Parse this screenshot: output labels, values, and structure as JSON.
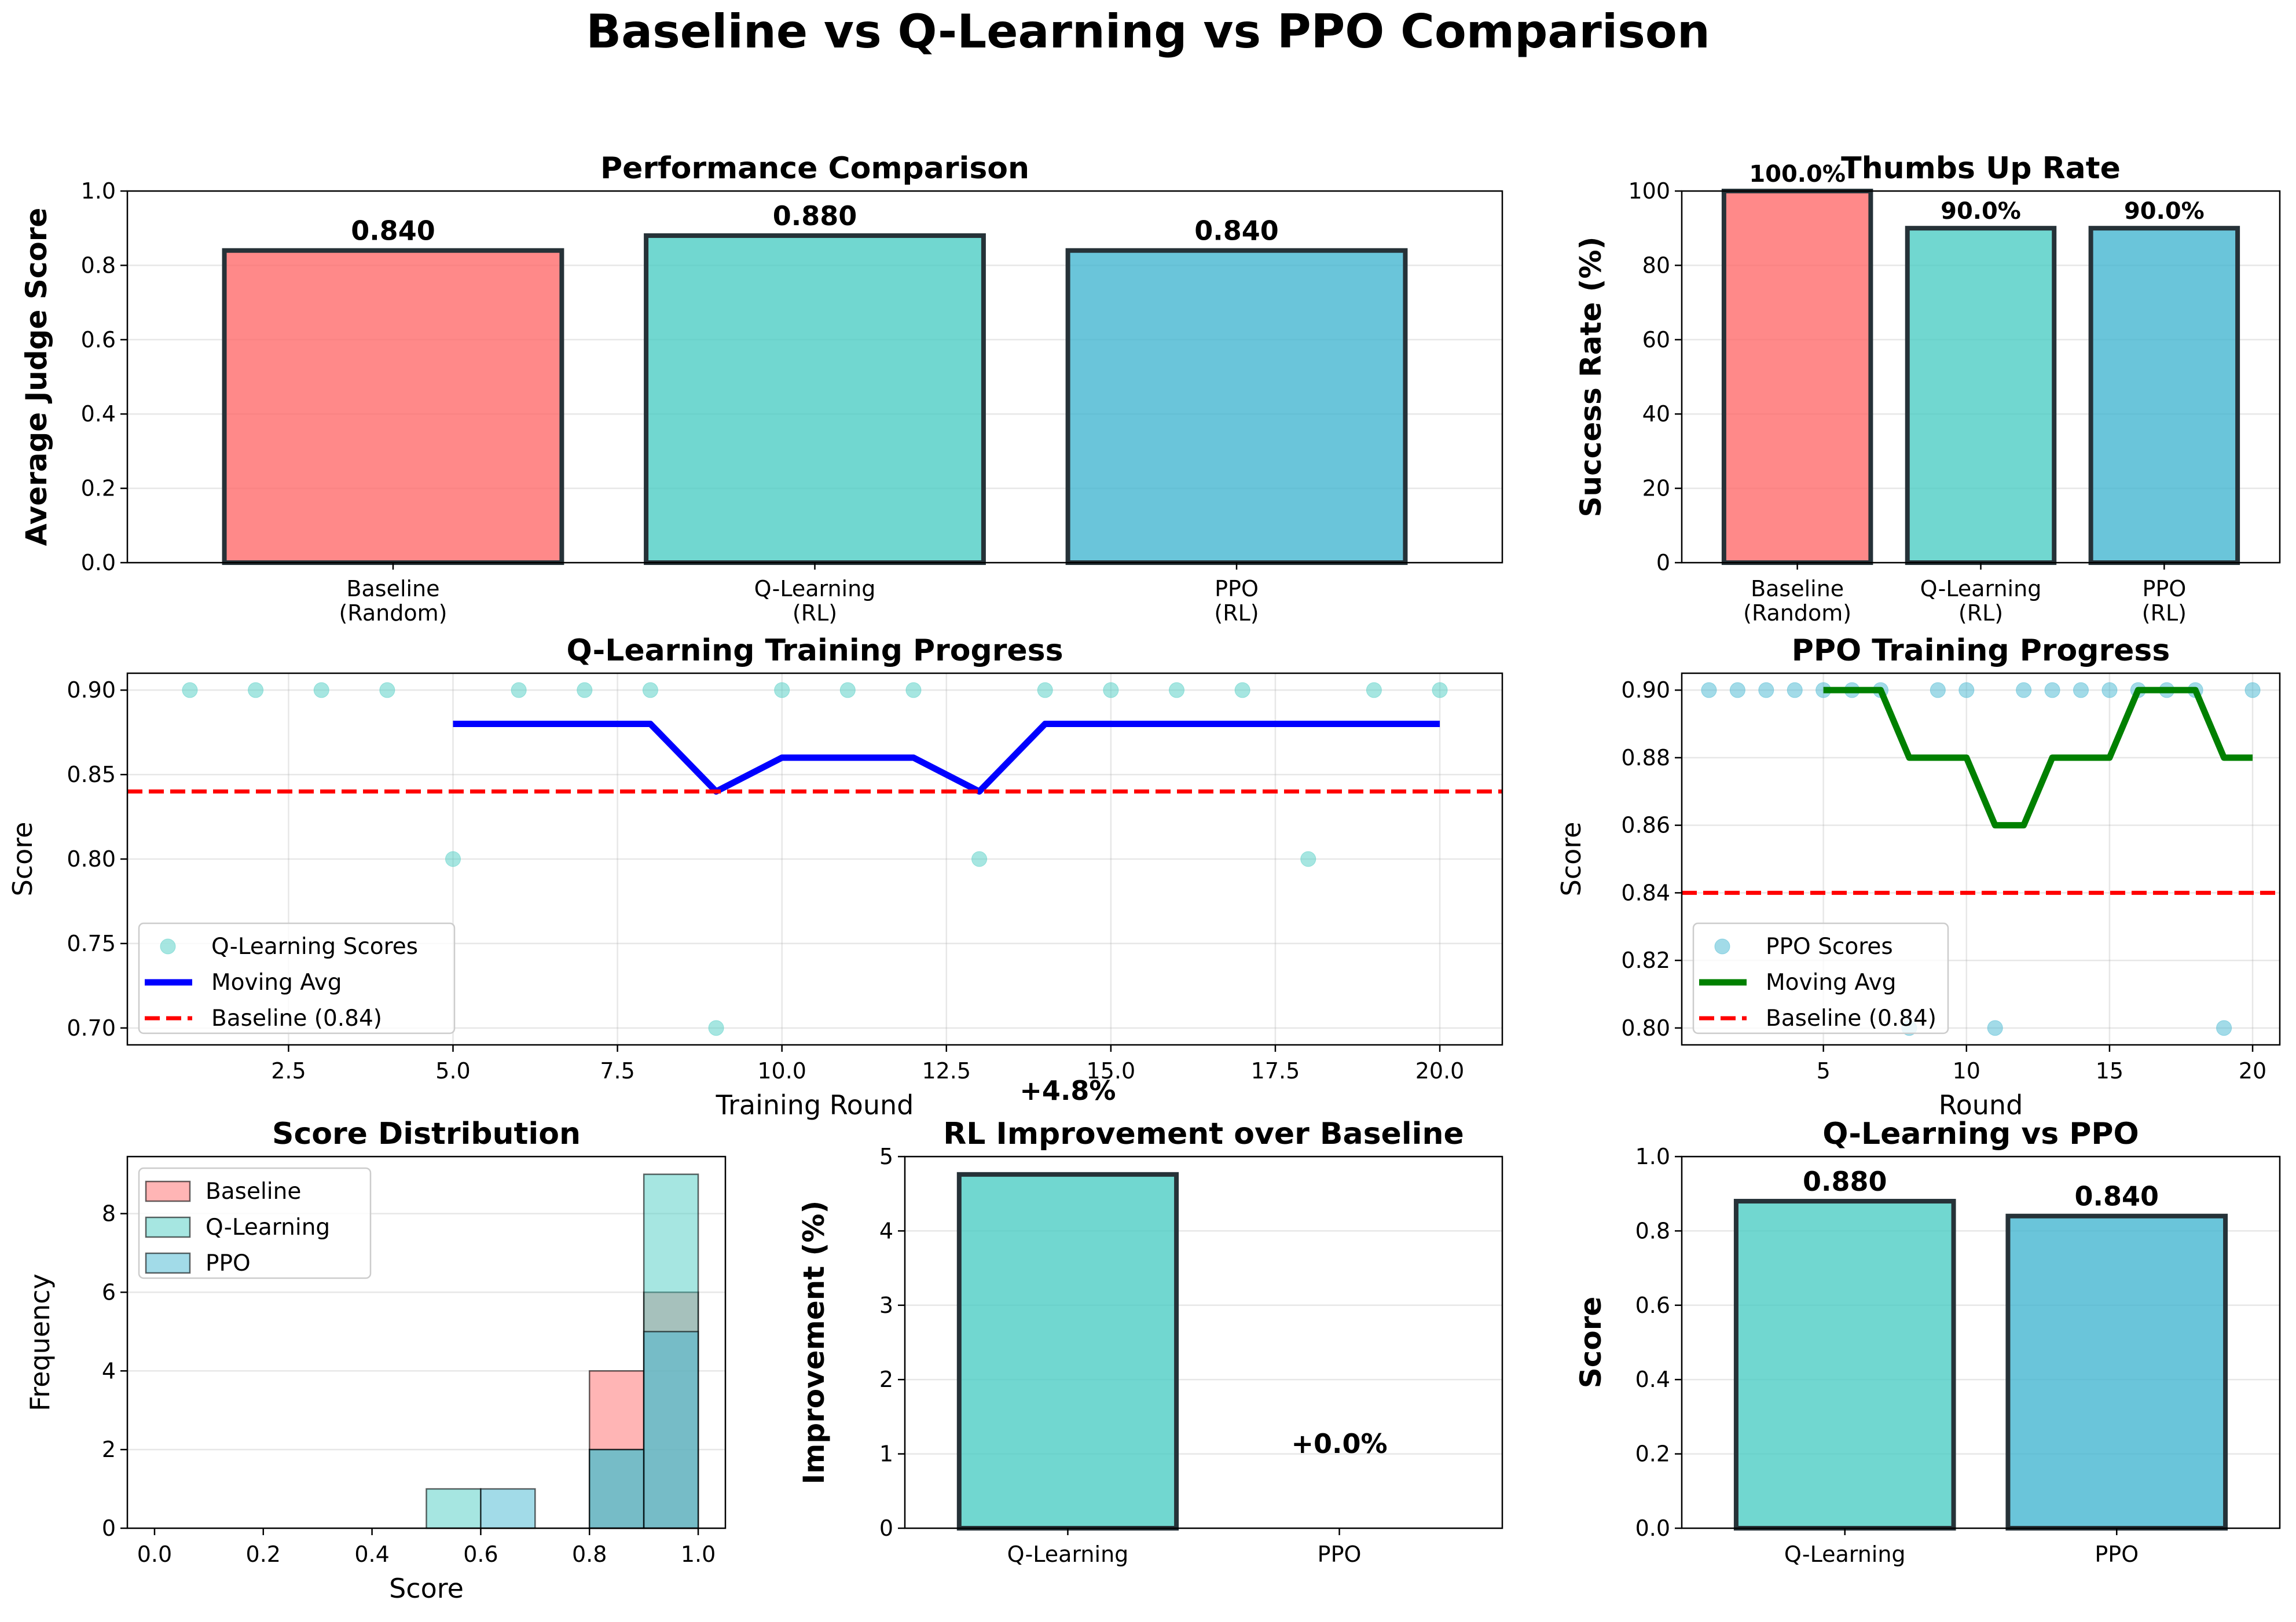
{
  "figure": {
    "title": "Baseline vs Q-Learning vs PPO Comparison"
  },
  "colors": {
    "baseline": "#FF6B6B",
    "qlearning": "#4ECDC4",
    "ppo": "#45B7D1",
    "edge": "#263238",
    "qavg": "#0000FF",
    "ppoavg": "#008000",
    "baseline_line": "#FF0000"
  },
  "chart_data": [
    {
      "id": "performance",
      "type": "bar",
      "title": "Performance Comparison",
      "ylabel": "Average Judge Score",
      "categories": [
        [
          "Baseline",
          "(Random)"
        ],
        [
          "Q-Learning",
          "(RL)"
        ],
        [
          "PPO",
          "(RL)"
        ]
      ],
      "values": [
        0.84,
        0.88,
        0.84
      ],
      "value_labels": [
        "0.840",
        "0.880",
        "0.840"
      ],
      "ylim": [
        0,
        1.0
      ],
      "yticks": [
        0.0,
        0.2,
        0.4,
        0.6,
        0.8,
        1.0
      ],
      "ytick_labels": [
        "0.0",
        "0.2",
        "0.4",
        "0.6",
        "0.8",
        "1.0"
      ]
    },
    {
      "id": "thumbs",
      "type": "bar",
      "title": "Thumbs Up Rate",
      "ylabel": "Success Rate (%)",
      "categories": [
        [
          "Baseline",
          "(Random)"
        ],
        [
          "Q-Learning",
          "(RL)"
        ],
        [
          "PPO",
          "(RL)"
        ]
      ],
      "values": [
        100,
        90,
        90
      ],
      "value_labels": [
        "100.0%",
        "90.0%",
        "90.0%"
      ],
      "ylim": [
        0,
        100
      ],
      "yticks": [
        0,
        20,
        40,
        60,
        80,
        100
      ],
      "ytick_labels": [
        "0",
        "20",
        "40",
        "60",
        "80",
        "100"
      ]
    },
    {
      "id": "qprogress",
      "type": "line",
      "title": "Q-Learning Training Progress",
      "xlabel": "Training Round",
      "ylabel": "Score",
      "scatter": {
        "name": "Q-Learning Scores",
        "x": [
          1,
          2,
          3,
          4,
          5,
          6,
          7,
          8,
          9,
          10,
          11,
          12,
          13,
          14,
          15,
          16,
          17,
          18,
          19,
          20
        ],
        "y": [
          0.9,
          0.9,
          0.9,
          0.9,
          0.8,
          0.9,
          0.9,
          0.9,
          0.7,
          0.9,
          0.9,
          0.9,
          0.8,
          0.9,
          0.9,
          0.9,
          0.9,
          0.8,
          0.9,
          0.9
        ]
      },
      "moving_avg": {
        "name": "Moving Avg",
        "x": [
          5,
          6,
          7,
          8,
          9,
          10,
          11,
          12,
          13,
          14,
          15,
          16,
          17,
          18,
          19,
          20
        ],
        "y": [
          0.88,
          0.88,
          0.88,
          0.88,
          0.84,
          0.86,
          0.86,
          0.86,
          0.84,
          0.88,
          0.88,
          0.88,
          0.88,
          0.88,
          0.88,
          0.88
        ]
      },
      "baseline": {
        "name": "Baseline (0.84)",
        "value": 0.84
      },
      "xlim": [
        0.05,
        20.95
      ],
      "ylim": [
        0.69,
        0.91
      ],
      "xticks": [
        2.5,
        5.0,
        7.5,
        10.0,
        12.5,
        15.0,
        17.5,
        20.0
      ],
      "xtick_labels": [
        "2.5",
        "5.0",
        "7.5",
        "10.0",
        "12.5",
        "15.0",
        "17.5",
        "20.0"
      ],
      "yticks": [
        0.7,
        0.75,
        0.8,
        0.85,
        0.9
      ],
      "ytick_labels": [
        "0.70",
        "0.75",
        "0.80",
        "0.85",
        "0.90"
      ],
      "legend_position": "lower-left"
    },
    {
      "id": "ppoprogress",
      "type": "line",
      "title": "PPO Training Progress",
      "xlabel": "Round",
      "ylabel": "Score",
      "scatter": {
        "name": "PPO Scores",
        "x": [
          1,
          2,
          3,
          4,
          5,
          6,
          7,
          8,
          9,
          10,
          11,
          12,
          13,
          14,
          15,
          16,
          17,
          18,
          19,
          20
        ],
        "y": [
          0.9,
          0.9,
          0.9,
          0.9,
          0.9,
          0.9,
          0.9,
          0.8,
          0.9,
          0.9,
          0.8,
          0.9,
          0.9,
          0.9,
          0.9,
          0.9,
          0.9,
          0.9,
          0.8,
          0.9
        ]
      },
      "moving_avg": {
        "name": "Moving Avg",
        "x": [
          5,
          6,
          7,
          8,
          9,
          10,
          11,
          12,
          13,
          14,
          15,
          16,
          17,
          18,
          19,
          20
        ],
        "y": [
          0.9,
          0.9,
          0.9,
          0.88,
          0.88,
          0.88,
          0.86,
          0.86,
          0.88,
          0.88,
          0.88,
          0.9,
          0.9,
          0.9,
          0.88,
          0.88
        ]
      },
      "baseline": {
        "name": "Baseline (0.84)",
        "value": 0.84
      },
      "xlim": [
        0.05,
        20.95
      ],
      "ylim": [
        0.795,
        0.905
      ],
      "xticks": [
        5,
        10,
        15,
        20
      ],
      "xtick_labels": [
        "5",
        "10",
        "15",
        "20"
      ],
      "yticks": [
        0.8,
        0.82,
        0.84,
        0.86,
        0.88,
        0.9
      ],
      "ytick_labels": [
        "0.80",
        "0.82",
        "0.84",
        "0.86",
        "0.88",
        "0.90"
      ],
      "legend_position": "lower-left"
    },
    {
      "id": "distribution",
      "type": "histogram",
      "title": "Score Distribution",
      "xlabel": "Score",
      "ylabel": "Frequency",
      "bins": [
        0.0,
        0.1,
        0.2,
        0.3,
        0.4,
        0.5,
        0.6,
        0.7,
        0.8,
        0.9,
        1.0
      ],
      "series": [
        {
          "name": "Baseline",
          "counts": [
            0,
            0,
            0,
            0,
            0,
            0,
            0,
            0,
            4,
            6
          ]
        },
        {
          "name": "Q-Learning",
          "counts": [
            0,
            0,
            0,
            0,
            0,
            1,
            0,
            0,
            2,
            9
          ]
        },
        {
          "name": "PPO",
          "counts": [
            0,
            0,
            0,
            0,
            0,
            0,
            1,
            0,
            2,
            5
          ]
        }
      ],
      "xlim": [
        -0.05,
        1.05
      ],
      "ylim": [
        0,
        9.45
      ],
      "xticks": [
        0.0,
        0.2,
        0.4,
        0.6,
        0.8,
        1.0
      ],
      "xtick_labels": [
        "0.0",
        "0.2",
        "0.4",
        "0.6",
        "0.8",
        "1.0"
      ],
      "yticks": [
        0,
        2,
        4,
        6,
        8
      ],
      "ytick_labels": [
        "0",
        "2",
        "4",
        "6",
        "8"
      ],
      "legend_position": "upper-left"
    },
    {
      "id": "improvement",
      "type": "bar",
      "title": "RL Improvement over Baseline",
      "ylabel": "Improvement (%)",
      "categories": [
        [
          "Q-Learning"
        ],
        [
          "PPO"
        ]
      ],
      "values": [
        4.76,
        0.0
      ],
      "value_labels": [
        "+4.8%",
        "+0.0%"
      ],
      "ylim": [
        0,
        5
      ],
      "yticks": [
        0,
        1,
        2,
        3,
        4,
        5
      ],
      "ytick_labels": [
        "0",
        "1",
        "2",
        "3",
        "4",
        "5"
      ]
    },
    {
      "id": "qvsppo",
      "type": "bar",
      "title": "Q-Learning vs PPO",
      "ylabel": "Score",
      "categories": [
        [
          "Q-Learning"
        ],
        [
          "PPO"
        ]
      ],
      "values": [
        0.88,
        0.84
      ],
      "value_labels": [
        "0.880",
        "0.840"
      ],
      "ylim": [
        0,
        1.0
      ],
      "yticks": [
        0.0,
        0.2,
        0.4,
        0.6,
        0.8,
        1.0
      ],
      "ytick_labels": [
        "0.0",
        "0.2",
        "0.4",
        "0.6",
        "0.8",
        "1.0"
      ]
    }
  ]
}
